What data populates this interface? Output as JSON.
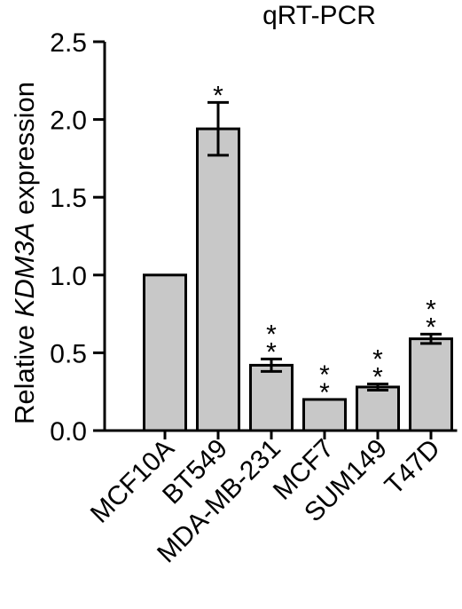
{
  "chart_data": {
    "type": "bar",
    "title": "qRT-PCR",
    "ylabel_prefix": "Relative ",
    "ylabel_gene": "KDM3A",
    "ylabel_suffix": " expression",
    "xlabel": "",
    "ylim": [
      0,
      2.5
    ],
    "yticks": [
      "0.0",
      "0.5",
      "1.0",
      "1.5",
      "2.0",
      "2.5"
    ],
    "categories": [
      "MCF10A",
      "BT549",
      "MDA-MB-231",
      "MCF7",
      "SUM149",
      "T47D"
    ],
    "values": [
      1.0,
      1.94,
      0.42,
      0.2,
      0.28,
      0.59
    ],
    "errors": [
      0.0,
      0.17,
      0.04,
      0.0,
      0.02,
      0.03
    ],
    "significance": [
      "",
      "*",
      "**",
      "**",
      "**",
      "**"
    ],
    "bar_color": "#c8c8c8",
    "edge_color": "#000000",
    "grid": false,
    "legend": "none"
  }
}
